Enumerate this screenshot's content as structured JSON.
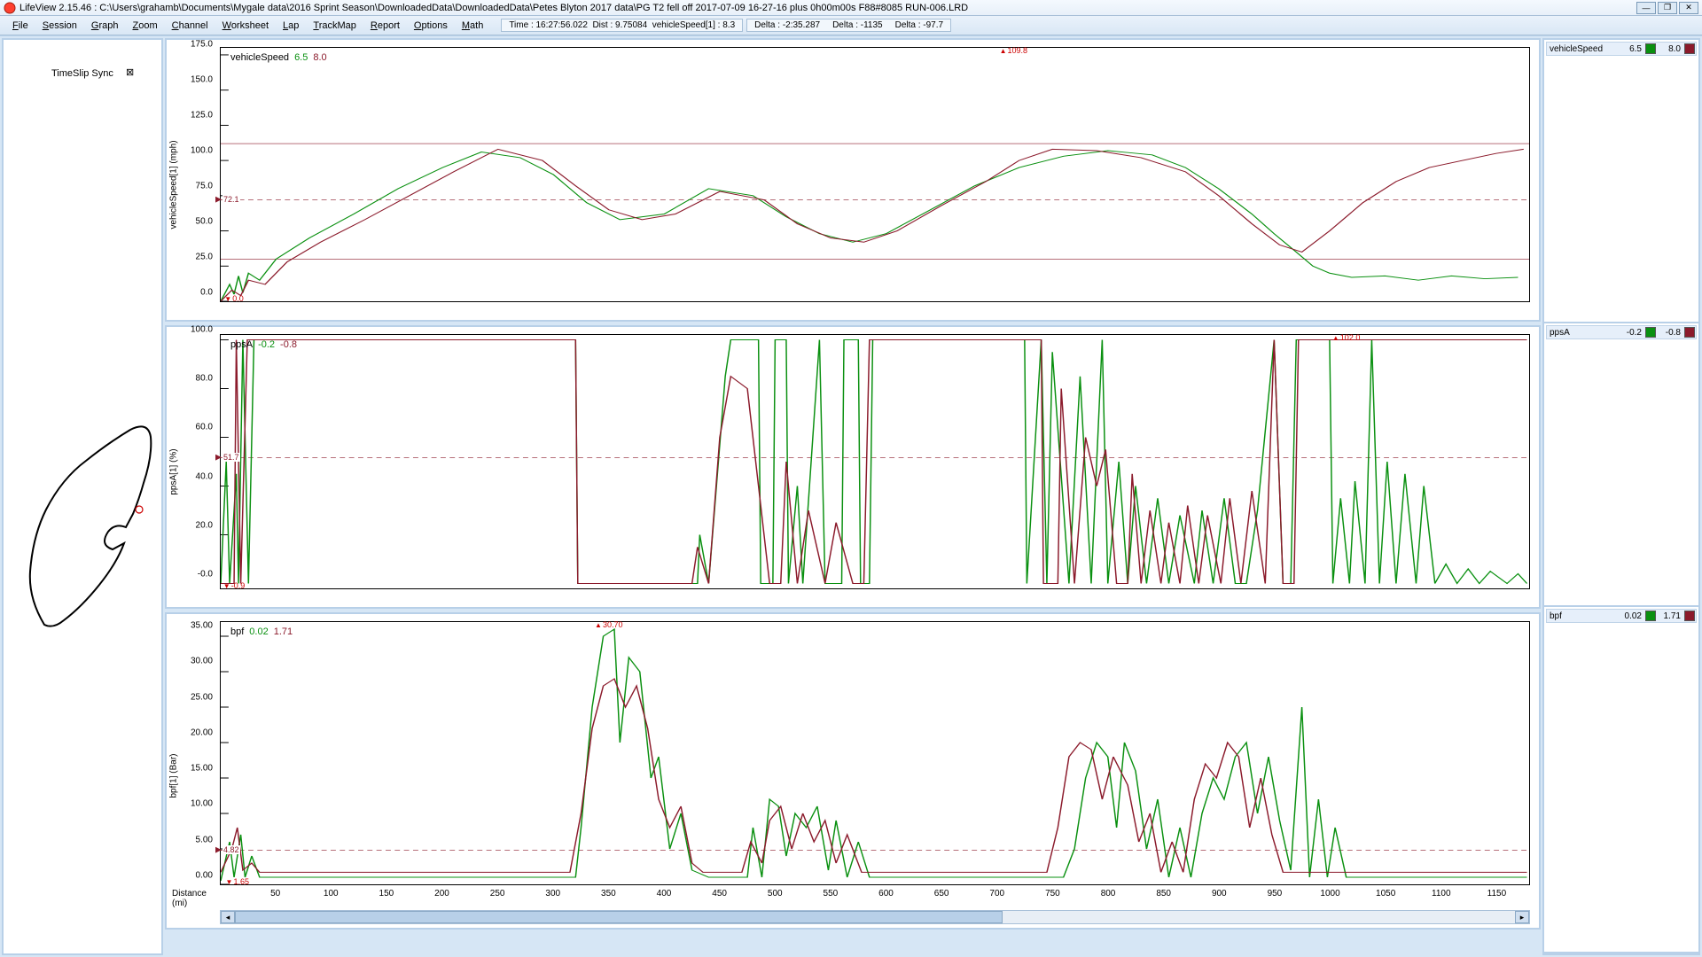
{
  "app": {
    "title": "LifeView 2.15.46  :  C:\\Users\\grahamb\\Documents\\Mygale data\\2016 Sprint Season\\DownloadedData\\DownloadedData\\Petes Blyton 2017 data\\PG T2  fell off 2017-07-09 16-27-16 plus 0h00m00s F88#8085 RUN-006.LRD"
  },
  "menu": [
    "File",
    "Session",
    "Graph",
    "Zoom",
    "Channel",
    "Worksheet",
    "Lap",
    "TrackMap",
    "Report",
    "Options",
    "Math"
  ],
  "status": {
    "time": "Time : 16:27:56.022",
    "dist": "Dist : 9.75084",
    "chan": "vehicleSpeed[1] : 8.3",
    "d1": "Delta : -2:35.287",
    "d2": "Delta : -1135",
    "d3": "Delta : -97.7"
  },
  "left": {
    "timeslip": "TimeSlip Sync"
  },
  "xaxis": {
    "label": "Distance\n(mi)",
    "ticks": [
      50,
      100,
      150,
      200,
      250,
      300,
      350,
      400,
      450,
      500,
      550,
      600,
      650,
      700,
      750,
      800,
      850,
      900,
      950,
      1000,
      1050,
      1100,
      1150
    ],
    "min": 0,
    "max": 1180
  },
  "charts": [
    {
      "name": "vehicleSpeed",
      "v1": "6.5",
      "v2": "8.0",
      "ylabel": "vehicleSpeed[1] (mph)",
      "ymin": 0,
      "ymax": 180,
      "yticks": [
        0,
        25,
        50,
        75,
        100,
        125,
        150,
        175
      ],
      "topMarker": {
        "x": 715,
        "label": "109.8"
      },
      "botMarker": {
        "x": 12,
        "label": "0.0"
      },
      "cursor": {
        "y": 72.1,
        "label": "72.1"
      },
      "ref_solid": [
        112,
        30
      ],
      "ref_dash": [
        72.1
      ],
      "g": [
        [
          0,
          0
        ],
        [
          8,
          12
        ],
        [
          12,
          5
        ],
        [
          16,
          18
        ],
        [
          20,
          6
        ],
        [
          25,
          20
        ],
        [
          35,
          15
        ],
        [
          50,
          30
        ],
        [
          80,
          45
        ],
        [
          120,
          62
        ],
        [
          160,
          80
        ],
        [
          200,
          95
        ],
        [
          235,
          106
        ],
        [
          270,
          102
        ],
        [
          300,
          90
        ],
        [
          330,
          70
        ],
        [
          360,
          58
        ],
        [
          400,
          62
        ],
        [
          440,
          80
        ],
        [
          480,
          75
        ],
        [
          510,
          60
        ],
        [
          540,
          48
        ],
        [
          570,
          42
        ],
        [
          600,
          48
        ],
        [
          640,
          65
        ],
        [
          680,
          82
        ],
        [
          720,
          95
        ],
        [
          760,
          103
        ],
        [
          800,
          107
        ],
        [
          840,
          104
        ],
        [
          870,
          95
        ],
        [
          900,
          80
        ],
        [
          930,
          62
        ],
        [
          950,
          48
        ],
        [
          970,
          35
        ],
        [
          985,
          25
        ],
        [
          1000,
          20
        ],
        [
          1020,
          17
        ],
        [
          1050,
          18
        ],
        [
          1080,
          15
        ],
        [
          1110,
          18
        ],
        [
          1140,
          16
        ],
        [
          1170,
          17
        ]
      ],
      "r": [
        [
          0,
          0
        ],
        [
          10,
          8
        ],
        [
          18,
          4
        ],
        [
          25,
          15
        ],
        [
          40,
          12
        ],
        [
          60,
          28
        ],
        [
          90,
          42
        ],
        [
          130,
          58
        ],
        [
          170,
          75
        ],
        [
          210,
          92
        ],
        [
          250,
          108
        ],
        [
          290,
          100
        ],
        [
          320,
          82
        ],
        [
          350,
          65
        ],
        [
          380,
          58
        ],
        [
          410,
          62
        ],
        [
          450,
          78
        ],
        [
          490,
          72
        ],
        [
          520,
          55
        ],
        [
          550,
          45
        ],
        [
          580,
          42
        ],
        [
          610,
          50
        ],
        [
          650,
          68
        ],
        [
          690,
          85
        ],
        [
          720,
          100
        ],
        [
          750,
          108
        ],
        [
          790,
          107
        ],
        [
          830,
          102
        ],
        [
          870,
          92
        ],
        [
          900,
          75
        ],
        [
          930,
          55
        ],
        [
          955,
          40
        ],
        [
          975,
          35
        ],
        [
          1000,
          50
        ],
        [
          1030,
          70
        ],
        [
          1060,
          85
        ],
        [
          1090,
          95
        ],
        [
          1120,
          100
        ],
        [
          1150,
          105
        ],
        [
          1175,
          108
        ]
      ]
    },
    {
      "name": "ppsA",
      "v1": "-0.2",
      "v2": "-0.8",
      "ylabel": "ppsA[1] (%)",
      "ymin": -2,
      "ymax": 102,
      "yticks": [
        0,
        20,
        40,
        60,
        80,
        100
      ],
      "ytick_labels": [
        "-0.0",
        "20.0",
        "40.0",
        "60.0",
        "80.0",
        "100.0"
      ],
      "topMarker": {
        "x": 1015,
        "label": "102.0"
      },
      "botMarker": {
        "x": 12,
        "label": "-0.9"
      },
      "cursor": {
        "y": 51.7,
        "label": "51.7"
      },
      "ref_dash": [
        51.7
      ],
      "g": [
        [
          0,
          0
        ],
        [
          5,
          50
        ],
        [
          8,
          0
        ],
        [
          14,
          45
        ],
        [
          16,
          0
        ],
        [
          20,
          100
        ],
        [
          25,
          0
        ],
        [
          30,
          100
        ],
        [
          320,
          100
        ],
        [
          322,
          0
        ],
        [
          430,
          0
        ],
        [
          432,
          20
        ],
        [
          440,
          0
        ],
        [
          455,
          85
        ],
        [
          460,
          100
        ],
        [
          485,
          100
        ],
        [
          487,
          0
        ],
        [
          498,
          0
        ],
        [
          500,
          100
        ],
        [
          510,
          100
        ],
        [
          512,
          0
        ],
        [
          520,
          40
        ],
        [
          525,
          0
        ],
        [
          540,
          100
        ],
        [
          545,
          0
        ],
        [
          560,
          0
        ],
        [
          562,
          100
        ],
        [
          575,
          100
        ],
        [
          577,
          0
        ],
        [
          585,
          0
        ],
        [
          588,
          100
        ],
        [
          725,
          100
        ],
        [
          727,
          0
        ],
        [
          740,
          100
        ],
        [
          745,
          0
        ],
        [
          750,
          95
        ],
        [
          765,
          0
        ],
        [
          775,
          85
        ],
        [
          785,
          0
        ],
        [
          795,
          100
        ],
        [
          800,
          0
        ],
        [
          810,
          50
        ],
        [
          818,
          0
        ],
        [
          825,
          40
        ],
        [
          835,
          0
        ],
        [
          845,
          35
        ],
        [
          855,
          0
        ],
        [
          865,
          28
        ],
        [
          878,
          0
        ],
        [
          885,
          30
        ],
        [
          895,
          0
        ],
        [
          905,
          35
        ],
        [
          915,
          0
        ],
        [
          925,
          0
        ],
        [
          935,
          30
        ],
        [
          950,
          100
        ],
        [
          958,
          0
        ],
        [
          965,
          0
        ],
        [
          970,
          100
        ],
        [
          1000,
          100
        ],
        [
          1003,
          0
        ],
        [
          1010,
          35
        ],
        [
          1018,
          0
        ],
        [
          1023,
          42
        ],
        [
          1032,
          0
        ],
        [
          1038,
          100
        ],
        [
          1045,
          0
        ],
        [
          1052,
          50
        ],
        [
          1060,
          0
        ],
        [
          1068,
          45
        ],
        [
          1078,
          0
        ],
        [
          1085,
          40
        ],
        [
          1095,
          0
        ],
        [
          1105,
          8
        ],
        [
          1115,
          0
        ],
        [
          1125,
          6
        ],
        [
          1135,
          0
        ],
        [
          1145,
          5
        ],
        [
          1160,
          0
        ],
        [
          1170,
          4
        ],
        [
          1178,
          0
        ]
      ],
      "r": [
        [
          0,
          0
        ],
        [
          12,
          0
        ],
        [
          14,
          100
        ],
        [
          18,
          0
        ],
        [
          24,
          100
        ],
        [
          320,
          100
        ],
        [
          322,
          0
        ],
        [
          425,
          0
        ],
        [
          430,
          15
        ],
        [
          440,
          0
        ],
        [
          450,
          60
        ],
        [
          460,
          85
        ],
        [
          475,
          80
        ],
        [
          485,
          40
        ],
        [
          495,
          0
        ],
        [
          505,
          0
        ],
        [
          510,
          50
        ],
        [
          520,
          0
        ],
        [
          530,
          30
        ],
        [
          545,
          0
        ],
        [
          555,
          25
        ],
        [
          570,
          0
        ],
        [
          580,
          0
        ],
        [
          585,
          100
        ],
        [
          740,
          100
        ],
        [
          742,
          0
        ],
        [
          755,
          0
        ],
        [
          758,
          80
        ],
        [
          770,
          0
        ],
        [
          780,
          60
        ],
        [
          790,
          40
        ],
        [
          798,
          55
        ],
        [
          808,
          0
        ],
        [
          818,
          0
        ],
        [
          822,
          45
        ],
        [
          830,
          0
        ],
        [
          838,
          30
        ],
        [
          848,
          0
        ],
        [
          855,
          25
        ],
        [
          865,
          0
        ],
        [
          872,
          32
        ],
        [
          882,
          0
        ],
        [
          890,
          28
        ],
        [
          902,
          0
        ],
        [
          910,
          35
        ],
        [
          920,
          0
        ],
        [
          930,
          38
        ],
        [
          942,
          0
        ],
        [
          950,
          100
        ],
        [
          958,
          0
        ],
        [
          968,
          0
        ],
        [
          972,
          100
        ],
        [
          1178,
          100
        ]
      ]
    },
    {
      "name": "bpf",
      "v1": "0.02",
      "v2": "1.71",
      "ylabel": "bpf[1] (Bar)",
      "ymin": 0,
      "ymax": 37,
      "yticks": [
        0,
        5,
        10,
        15,
        20,
        25,
        30,
        35
      ],
      "ytick_labels": [
        "0.00",
        "5.00",
        "10.00",
        "15.00",
        "20.00",
        "25.00",
        "30.00",
        "35.00"
      ],
      "topMarker": {
        "x": 350,
        "label": "30.70"
      },
      "botMarker": {
        "x": 15,
        "label": "1.65"
      },
      "cursor": {
        "y": 4.82,
        "label": "4.82"
      },
      "ref_dash": [
        4.82
      ],
      "g": [
        [
          0,
          0.5
        ],
        [
          8,
          6
        ],
        [
          12,
          1
        ],
        [
          18,
          7
        ],
        [
          22,
          1
        ],
        [
          28,
          4
        ],
        [
          35,
          1
        ],
        [
          320,
          1
        ],
        [
          325,
          8
        ],
        [
          335,
          25
        ],
        [
          345,
          35
        ],
        [
          355,
          36
        ],
        [
          360,
          20
        ],
        [
          368,
          32
        ],
        [
          378,
          30
        ],
        [
          388,
          15
        ],
        [
          395,
          18
        ],
        [
          405,
          5
        ],
        [
          415,
          10
        ],
        [
          425,
          2
        ],
        [
          440,
          1
        ],
        [
          475,
          1
        ],
        [
          480,
          8
        ],
        [
          488,
          1
        ],
        [
          495,
          12
        ],
        [
          503,
          11
        ],
        [
          510,
          4
        ],
        [
          518,
          10
        ],
        [
          528,
          8
        ],
        [
          538,
          11
        ],
        [
          548,
          2
        ],
        [
          555,
          9
        ],
        [
          565,
          1
        ],
        [
          575,
          6
        ],
        [
          585,
          1
        ],
        [
          760,
          1
        ],
        [
          770,
          5
        ],
        [
          780,
          15
        ],
        [
          790,
          20
        ],
        [
          800,
          18
        ],
        [
          808,
          8
        ],
        [
          815,
          20
        ],
        [
          825,
          16
        ],
        [
          835,
          5
        ],
        [
          845,
          12
        ],
        [
          855,
          1
        ],
        [
          865,
          8
        ],
        [
          875,
          1
        ],
        [
          885,
          10
        ],
        [
          895,
          15
        ],
        [
          905,
          12
        ],
        [
          915,
          18
        ],
        [
          925,
          20
        ],
        [
          935,
          10
        ],
        [
          945,
          18
        ],
        [
          955,
          9
        ],
        [
          965,
          2
        ],
        [
          975,
          25
        ],
        [
          982,
          1
        ],
        [
          990,
          12
        ],
        [
          998,
          1
        ],
        [
          1005,
          8
        ],
        [
          1015,
          1
        ],
        [
          1178,
          1
        ]
      ],
      "r": [
        [
          0,
          1.7
        ],
        [
          10,
          5
        ],
        [
          15,
          8
        ],
        [
          20,
          2
        ],
        [
          28,
          3
        ],
        [
          35,
          1.7
        ],
        [
          315,
          1.7
        ],
        [
          325,
          10
        ],
        [
          335,
          22
        ],
        [
          345,
          28
        ],
        [
          355,
          29
        ],
        [
          365,
          25
        ],
        [
          375,
          28
        ],
        [
          385,
          22
        ],
        [
          395,
          12
        ],
        [
          405,
          8
        ],
        [
          415,
          11
        ],
        [
          425,
          3
        ],
        [
          435,
          1.7
        ],
        [
          470,
          1.7
        ],
        [
          478,
          6
        ],
        [
          488,
          3
        ],
        [
          495,
          9
        ],
        [
          505,
          11
        ],
        [
          515,
          5
        ],
        [
          525,
          10
        ],
        [
          535,
          6
        ],
        [
          545,
          9
        ],
        [
          555,
          3
        ],
        [
          565,
          7
        ],
        [
          578,
          1.7
        ],
        [
          745,
          1.7
        ],
        [
          755,
          8
        ],
        [
          765,
          18
        ],
        [
          775,
          20
        ],
        [
          785,
          19
        ],
        [
          795,
          12
        ],
        [
          805,
          18
        ],
        [
          818,
          14
        ],
        [
          828,
          6
        ],
        [
          838,
          10
        ],
        [
          848,
          1.7
        ],
        [
          858,
          6
        ],
        [
          868,
          1.7
        ],
        [
          878,
          12
        ],
        [
          888,
          17
        ],
        [
          898,
          15
        ],
        [
          908,
          20
        ],
        [
          918,
          18
        ],
        [
          928,
          8
        ],
        [
          938,
          15
        ],
        [
          948,
          7
        ],
        [
          958,
          1.7
        ],
        [
          1178,
          1.7
        ]
      ]
    }
  ],
  "legend": [
    {
      "name": "vehicleSpeed",
      "v1": "6.5",
      "v2": "8.0",
      "c1": "#0a9010",
      "c2": "#8b1a2b"
    },
    {
      "name": "ppsA",
      "v1": "-0.2",
      "v2": "-0.8",
      "c1": "#0a9010",
      "c2": "#8b1a2b"
    },
    {
      "name": "bpf",
      "v1": "0.02",
      "v2": "1.71",
      "c1": "#0a9010",
      "c2": "#8b1a2b"
    }
  ],
  "colors": {
    "green": "#0a9010",
    "red": "#8b1a2b",
    "panel_border": "#b8d0e8",
    "bg": "#d6e6f5"
  }
}
